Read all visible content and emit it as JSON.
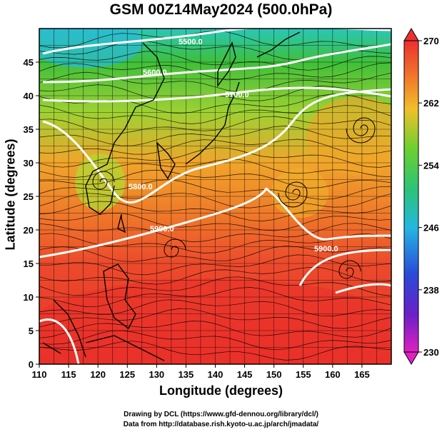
{
  "title": "GSM 00Z14May2024 (500.0hPa)",
  "axes": {
    "xlabel": "Longitude (degrees)",
    "ylabel": "Latitude  (degrees)",
    "xticks": [
      "110",
      "115",
      "120",
      "125",
      "130",
      "135",
      "140",
      "145",
      "150",
      "155",
      "160",
      "165"
    ],
    "yticks": [
      "0",
      "5",
      "10",
      "15",
      "20",
      "25",
      "30",
      "35",
      "40",
      "45"
    ],
    "xlim": [
      110,
      170
    ],
    "ylim": [
      0,
      50
    ]
  },
  "colorbar": {
    "ticks": [
      "270",
      "262",
      "254",
      "246",
      "238",
      "230"
    ],
    "range": [
      230,
      270
    ]
  },
  "contour_labels": [
    "5500.0",
    "5600.0",
    "5700.0",
    "5800.0",
    "5900.0",
    "5900.0"
  ],
  "credits": {
    "line1": "Drawing by DCL (https://www.gfd-dennou.org/library/dcl/)",
    "line2": "Data from http://database.rish.kyoto-u.ac.jp/arch/jmadata/"
  },
  "colors": {
    "red": "#e8352a",
    "orange": "#f08a2a",
    "yellow": "#d8e030",
    "green": "#39c23a",
    "cyan": "#20c8c0",
    "blue": "#1050d0"
  }
}
